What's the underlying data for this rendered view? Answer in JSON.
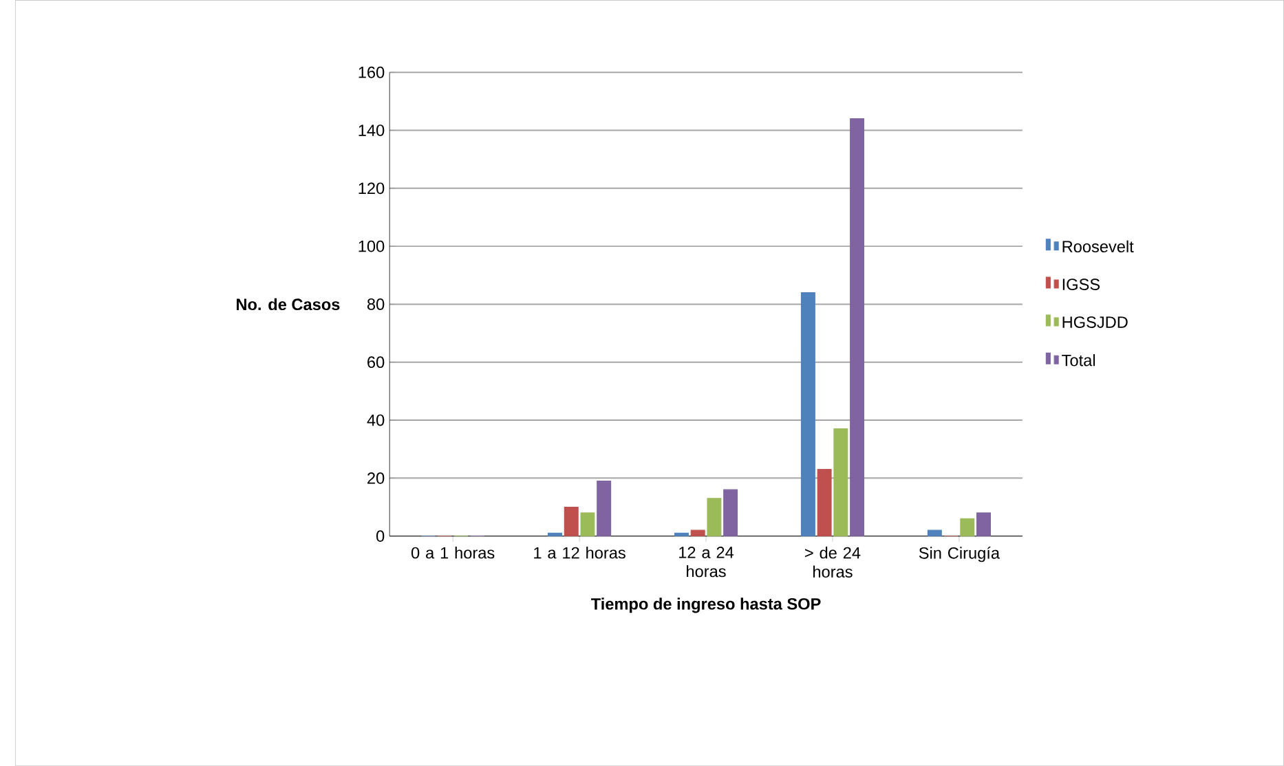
{
  "chart_data": {
    "type": "bar",
    "xlabel": "Tiempo de ingreso hasta SOP",
    "ylabel": "No. de Casos",
    "categories": [
      "0 a 1 horas",
      "1 a 12 horas",
      "12 a 24 horas",
      "> de 24 horas",
      "Sin Cirugía"
    ],
    "series": [
      {
        "name": "Roosevelt",
        "color": "#4f81bd",
        "values": [
          0,
          1,
          1,
          84,
          2
        ]
      },
      {
        "name": "IGSS",
        "color": "#c0504d",
        "values": [
          0,
          10,
          2,
          23,
          0
        ]
      },
      {
        "name": "HGSJDD",
        "color": "#9bbb59",
        "values": [
          0,
          8,
          13,
          37,
          6
        ]
      },
      {
        "name": "Total",
        "color": "#8064a2",
        "values": [
          0,
          19,
          16,
          144,
          8
        ]
      }
    ],
    "ylim": [
      0,
      160
    ],
    "yticks": [
      0,
      20,
      40,
      60,
      80,
      100,
      120,
      140,
      160
    ],
    "grid": "y",
    "legend": "right"
  }
}
